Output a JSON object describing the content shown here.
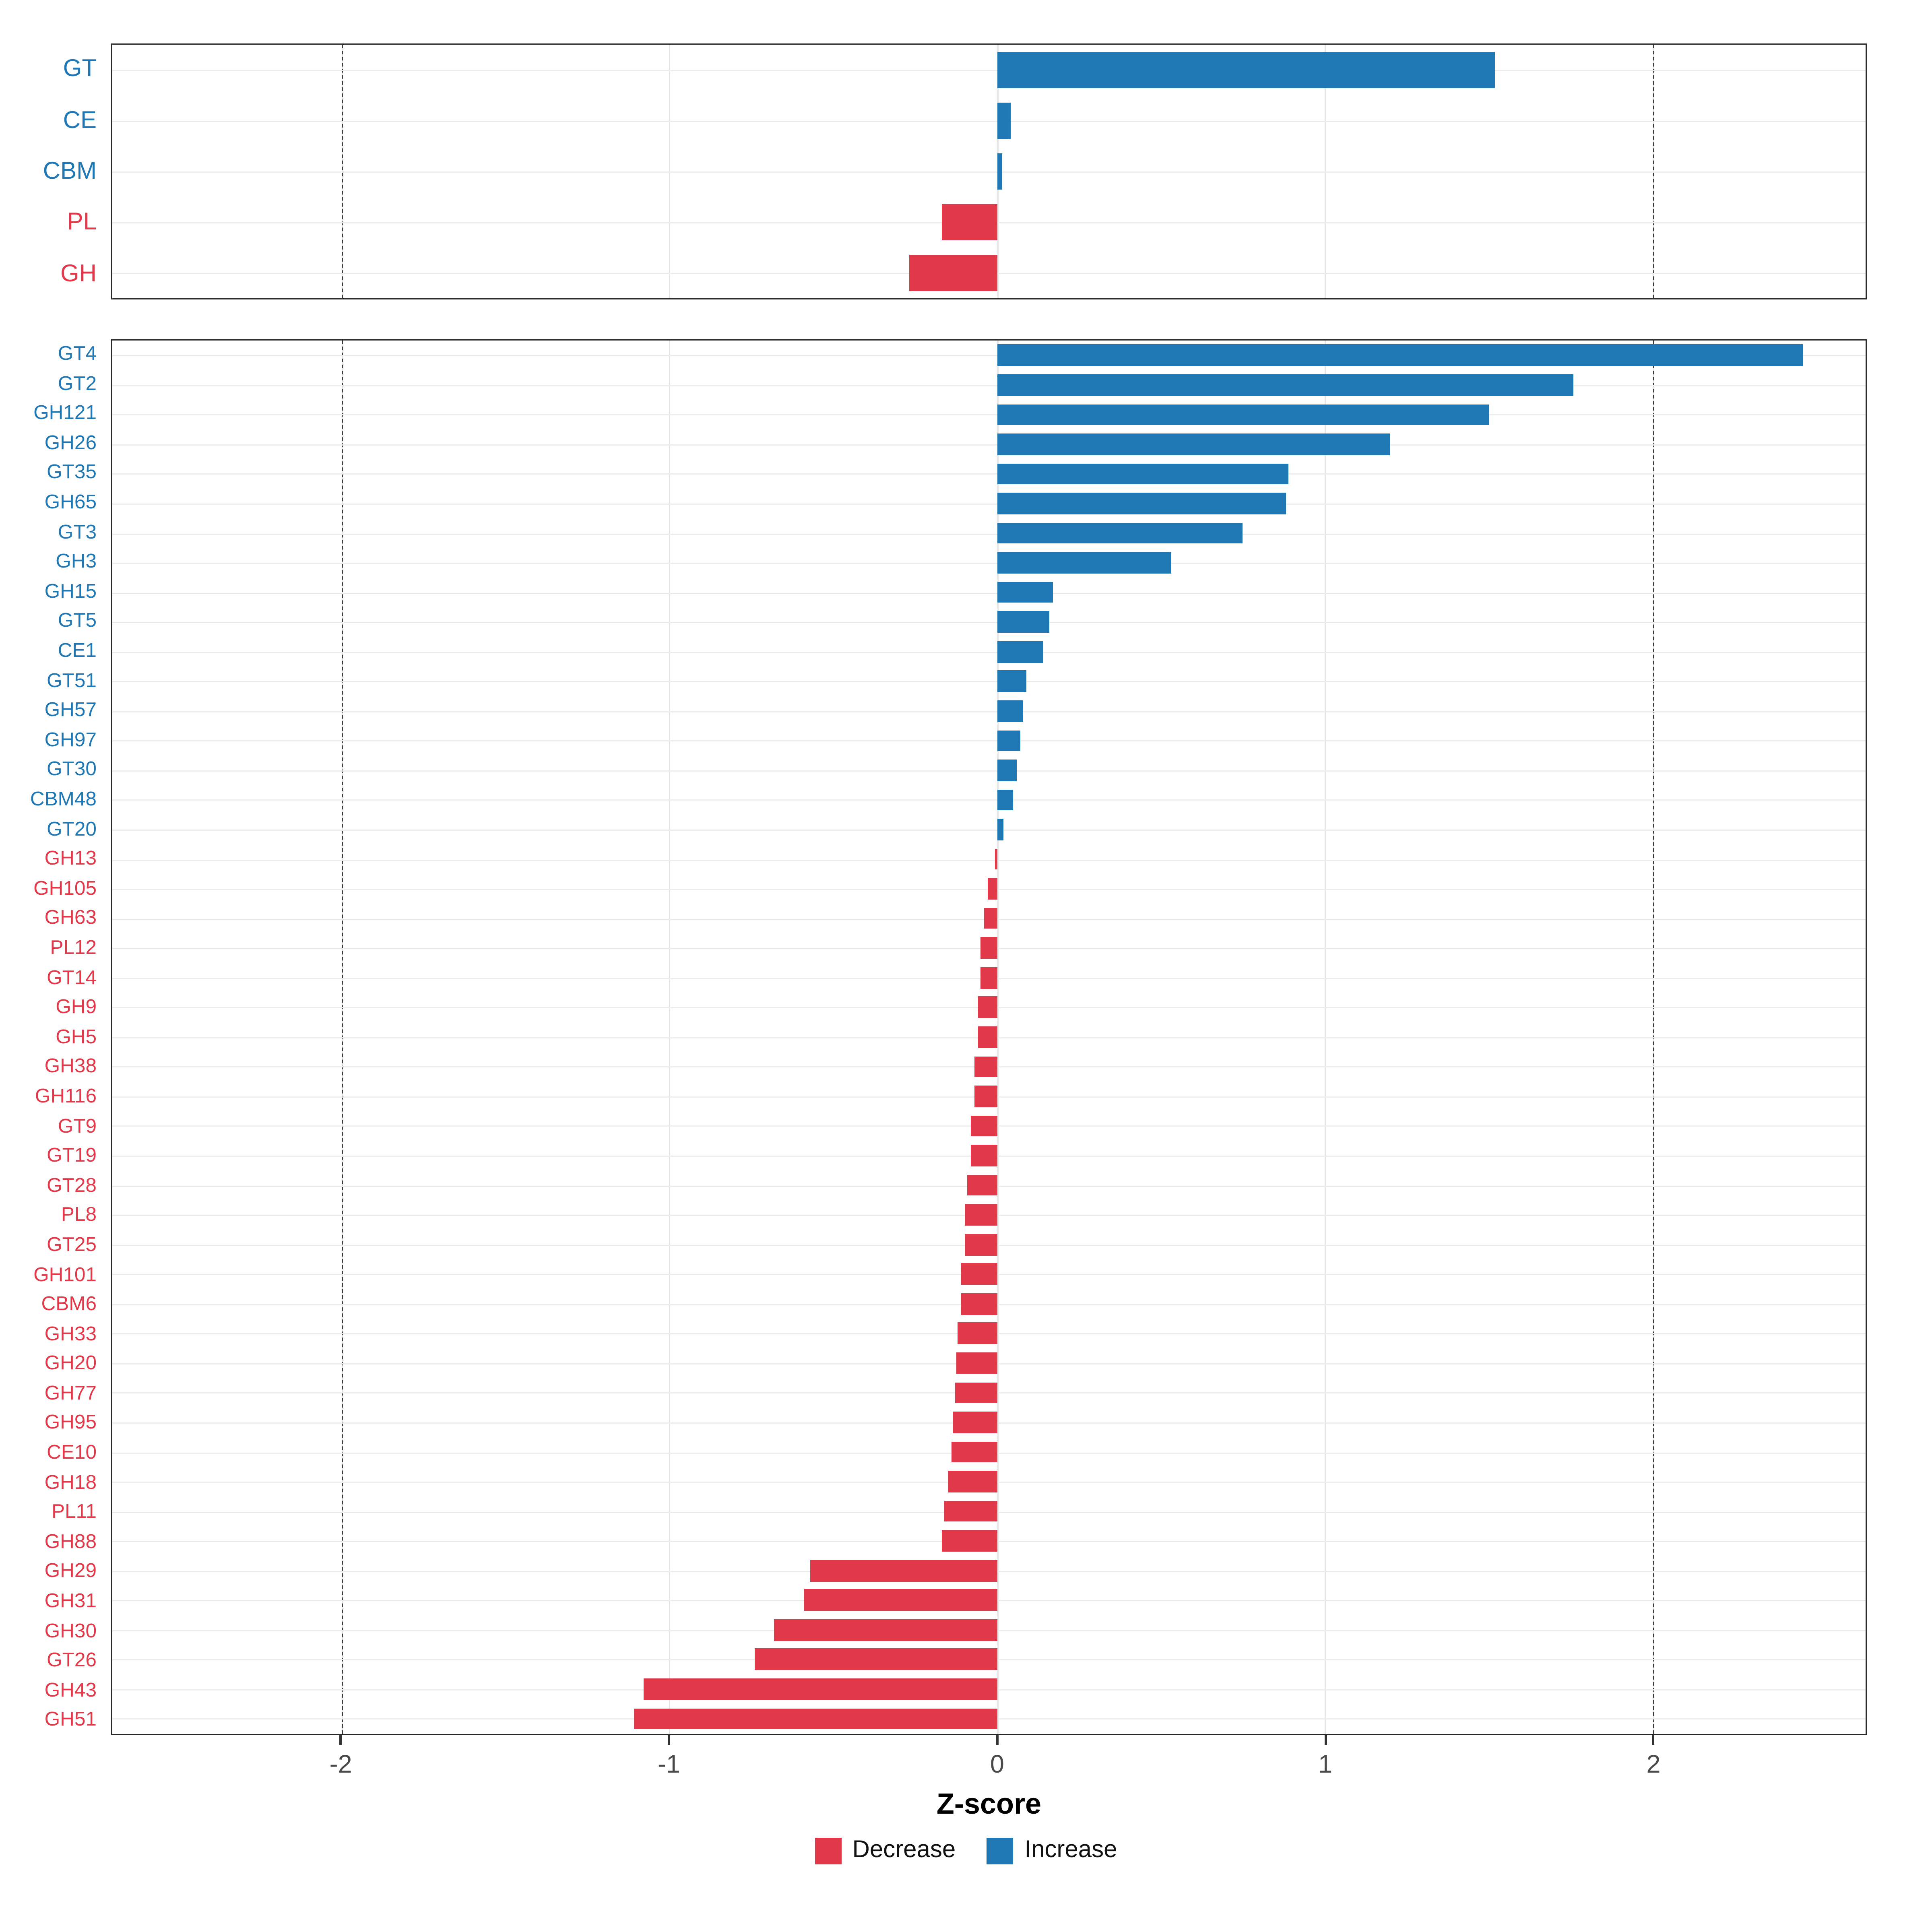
{
  "colors": {
    "increase": "#1f78b4",
    "decrease": "#e2394a"
  },
  "axis": {
    "xlabel": "Z-score",
    "tick_values": [
      -2,
      -1,
      0,
      1,
      2
    ],
    "tick_labels": [
      "-2",
      "-1",
      "0",
      "1",
      "2"
    ]
  },
  "legend": {
    "items": [
      {
        "label": "Decrease",
        "color": "#e2394a"
      },
      {
        "label": "Increase",
        "color": "#1f78b4"
      }
    ]
  },
  "chart_data": [
    {
      "type": "bar",
      "orientation": "horizontal",
      "panel": "cazyme-class-summary",
      "categories": [
        "GT",
        "CE",
        "CBM",
        "PL",
        "GH"
      ],
      "values": [
        1.52,
        0.04,
        0.015,
        -0.17,
        -0.27
      ],
      "xlim": [
        -2.7,
        2.65
      ],
      "xticks": [
        -2,
        -1,
        0,
        1,
        2
      ],
      "dashed_lines": [
        -2,
        2
      ],
      "grid": true,
      "legend_position": "bottom"
    },
    {
      "type": "bar",
      "orientation": "horizontal",
      "panel": "cazyme-family-detail",
      "categories": [
        "GT4",
        "GT2",
        "GH121",
        "GH26",
        "GT35",
        "GH65",
        "GT3",
        "GH3",
        "GH15",
        "GT5",
        "CE1",
        "GT51",
        "GH57",
        "GH97",
        "GT30",
        "CBM48",
        "GT20",
        "GH13",
        "GH105",
        "GH63",
        "PL12",
        "GT14",
        "GH9",
        "GH5",
        "GH38",
        "GH116",
        "GT9",
        "GT19",
        "GT28",
        "PL8",
        "GT25",
        "GH101",
        "CBM6",
        "GH33",
        "GH20",
        "GH77",
        "GH95",
        "CE10",
        "GH18",
        "PL11",
        "GH88",
        "GH29",
        "GH31",
        "GH30",
        "GT26",
        "GH43",
        "GH51"
      ],
      "values": [
        2.46,
        1.76,
        1.5,
        1.2,
        0.89,
        0.88,
        0.75,
        0.53,
        0.17,
        0.16,
        0.14,
        0.09,
        0.08,
        0.07,
        0.06,
        0.05,
        0.02,
        -0.005,
        -0.03,
        -0.04,
        -0.05,
        -0.05,
        -0.06,
        -0.06,
        -0.07,
        -0.07,
        -0.08,
        -0.08,
        -0.09,
        -0.1,
        -0.1,
        -0.11,
        -0.11,
        -0.12,
        -0.125,
        -0.13,
        -0.135,
        -0.14,
        -0.15,
        -0.16,
        -0.17,
        -0.57,
        -0.59,
        -0.68,
        -0.74,
        -1.08,
        -1.11
      ],
      "xlim": [
        -2.7,
        2.65
      ],
      "xticks": [
        -2,
        -1,
        0,
        1,
        2
      ],
      "dashed_lines": [
        -2,
        2
      ],
      "grid": true,
      "legend_position": "bottom"
    }
  ]
}
